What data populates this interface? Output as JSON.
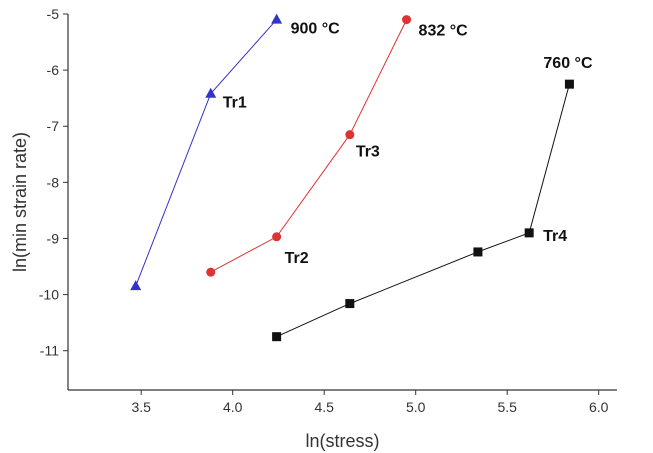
{
  "chart_data": {
    "type": "line",
    "title": "",
    "xlabel": "ln(stress)",
    "ylabel": "ln(min strain rate)",
    "xlim": [
      3.1,
      6.1
    ],
    "ylim": [
      -11.7,
      -5.0
    ],
    "xticks": [
      "3.5",
      "4.0",
      "4.5",
      "5.0",
      "5.5",
      "6.0"
    ],
    "yticks": [
      "-5",
      "-6",
      "-7",
      "-8",
      "-9",
      "-10",
      "-11"
    ],
    "grid": false,
    "legend": "none",
    "series": [
      {
        "color": "#3333cc",
        "marker": "triangle",
        "x": [
          3.47,
          3.88,
          4.24
        ],
        "y": [
          -9.85,
          -6.42,
          -5.1
        ]
      },
      {
        "color": "#dd3333",
        "marker": "circle",
        "x": [
          3.88,
          4.24,
          4.64,
          4.95
        ],
        "y": [
          -9.6,
          -8.97,
          -7.15,
          -5.1
        ]
      },
      {
        "color": "#111111",
        "marker": "square",
        "x": [
          4.24,
          4.64,
          5.34,
          5.62,
          5.84
        ],
        "y": [
          -10.75,
          -10.16,
          -9.24,
          -8.9,
          -6.25
        ]
      }
    ],
    "annotations": [
      {
        "text": "900 °C",
        "x": 4.24,
        "y": -5.1
      },
      {
        "text": "832 °C",
        "x": 4.95,
        "y": -5.1
      },
      {
        "text": "760 °C",
        "x": 5.84,
        "y": -6.25
      },
      {
        "text": "Tr1",
        "x": 3.88,
        "y": -6.42
      },
      {
        "text": "Tr2",
        "x": 4.24,
        "y": -8.97
      },
      {
        "text": "Tr3",
        "x": 4.64,
        "y": -7.15
      },
      {
        "text": "Tr4",
        "x": 5.62,
        "y": -8.9
      }
    ]
  }
}
